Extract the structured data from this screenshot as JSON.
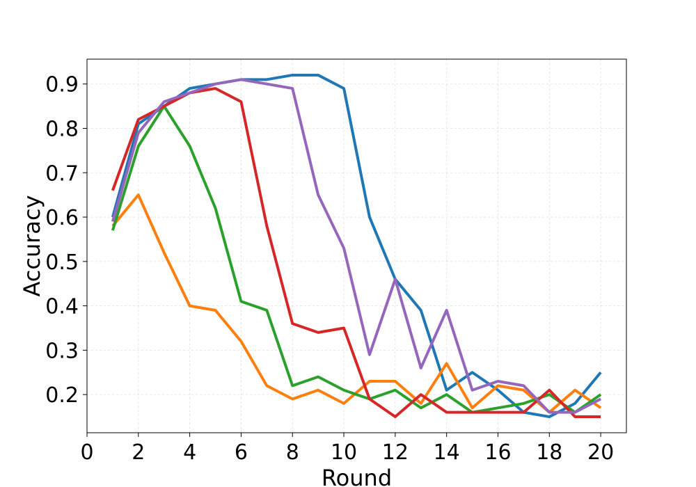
{
  "chart_data": {
    "type": "line",
    "title": "",
    "xlabel": "Round",
    "ylabel": "Accuracy",
    "xlim": [
      0,
      21
    ],
    "ylim": [
      0.114,
      0.956
    ],
    "xticks": [
      0,
      2,
      4,
      6,
      8,
      10,
      12,
      14,
      16,
      18,
      20
    ],
    "yticks": [
      0.2,
      0.3,
      0.4,
      0.5,
      0.6,
      0.7,
      0.8,
      0.9
    ],
    "grid": true,
    "legend": "none",
    "x": [
      1,
      2,
      3,
      4,
      5,
      6,
      7,
      8,
      9,
      10,
      11,
      12,
      13,
      14,
      15,
      16,
      17,
      18,
      19,
      20
    ],
    "series": [
      {
        "color": "#1f77b4",
        "values": [
          0.6,
          0.81,
          0.85,
          0.89,
          0.9,
          0.91,
          0.91,
          0.92,
          0.92,
          0.89,
          0.6,
          0.46,
          0.39,
          0.21,
          0.25,
          0.21,
          0.16,
          0.15,
          0.18,
          0.25
        ]
      },
      {
        "color": "#ff7f0e",
        "values": [
          0.58,
          0.65,
          0.52,
          0.4,
          0.39,
          0.32,
          0.22,
          0.19,
          0.21,
          0.18,
          0.23,
          0.23,
          0.18,
          0.27,
          0.17,
          0.22,
          0.21,
          0.16,
          0.21,
          0.17
        ]
      },
      {
        "color": "#2ca02c",
        "values": [
          0.57,
          0.76,
          0.85,
          0.76,
          0.62,
          0.41,
          0.39,
          0.22,
          0.24,
          0.21,
          0.19,
          0.21,
          0.17,
          0.2,
          0.16,
          0.17,
          0.18,
          0.2,
          0.16,
          0.2
        ]
      },
      {
        "color": "#d62728",
        "values": [
          0.66,
          0.82,
          0.85,
          0.88,
          0.89,
          0.86,
          0.58,
          0.36,
          0.34,
          0.35,
          0.19,
          0.15,
          0.2,
          0.16,
          0.16,
          0.16,
          0.16,
          0.21,
          0.15,
          0.15
        ]
      },
      {
        "color": "#9467bd",
        "values": [
          0.59,
          0.79,
          0.86,
          0.88,
          0.9,
          0.91,
          0.9,
          0.89,
          0.65,
          0.53,
          0.29,
          0.46,
          0.26,
          0.39,
          0.21,
          0.23,
          0.22,
          0.16,
          0.16,
          0.19
        ]
      }
    ]
  }
}
